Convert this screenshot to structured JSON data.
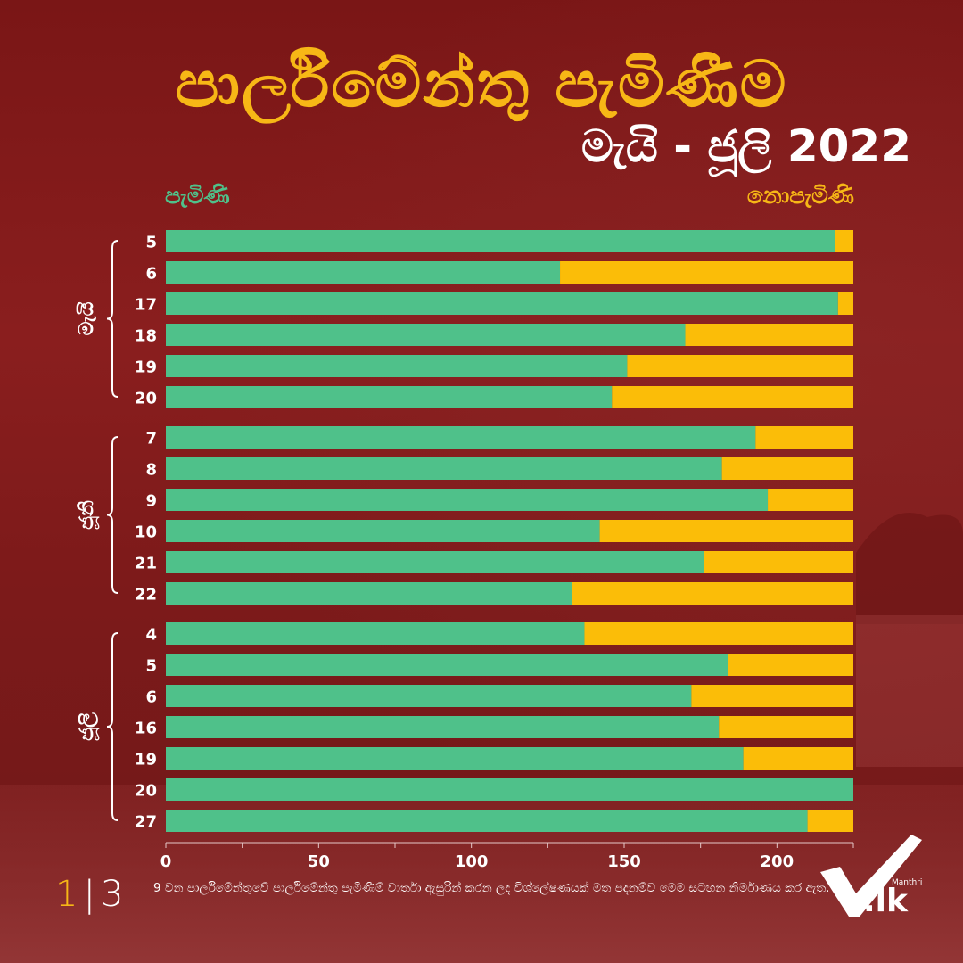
{
  "header": {
    "title": "පාර්ලිමේන්තු පැමිණීම",
    "subtitle": "මැයි - ජූලි 2022"
  },
  "legend": {
    "present": "පැමිණි",
    "absent": "නොපැමිණි"
  },
  "colors": {
    "present": "#4fc18a",
    "absent": "#fbbd08",
    "title": "#f7b716",
    "background": "#7a1616"
  },
  "chart_data": {
    "type": "bar",
    "orientation": "horizontal",
    "stacked": true,
    "xlim": [
      0,
      225
    ],
    "xticks": [
      0,
      50,
      100,
      150,
      200
    ],
    "groups": [
      {
        "label": "මැයි",
        "categories": [
          "5",
          "6",
          "17",
          "18",
          "19",
          "20"
        ],
        "present": [
          219,
          129,
          220,
          170,
          151,
          146
        ],
        "absent": [
          6,
          96,
          5,
          55,
          74,
          79
        ]
      },
      {
        "label": "ජූනි",
        "categories": [
          "7",
          "8",
          "9",
          "10",
          "21",
          "22"
        ],
        "present": [
          193,
          182,
          197,
          142,
          176,
          133
        ],
        "absent": [
          32,
          43,
          28,
          83,
          49,
          92
        ]
      },
      {
        "label": "ජූලි",
        "categories": [
          "4",
          "5",
          "6",
          "16",
          "19",
          "20",
          "27"
        ],
        "present": [
          137,
          184,
          172,
          181,
          189,
          225,
          210
        ],
        "absent": [
          88,
          41,
          53,
          44,
          36,
          0,
          15
        ]
      }
    ],
    "series": [
      {
        "name": "පැමිණි",
        "color": "#4fc18a"
      },
      {
        "name": "නොපැමිණි",
        "color": "#fbbd08"
      }
    ]
  },
  "footer": {
    "page_current": "1",
    "page_total": "3",
    "note": "9 වන පාර්ලිමේන්තුවේ පාර්ලිමේන්තු පැමිණීම් වාර්තා ඇසුරින් කරන ලද විශ්ලේෂණයක් මත පදනම්ව මෙම සටහන නිර්මාණය කර ඇත.",
    "logo_brand": "Manthri",
    "logo_tld": ".lk"
  }
}
